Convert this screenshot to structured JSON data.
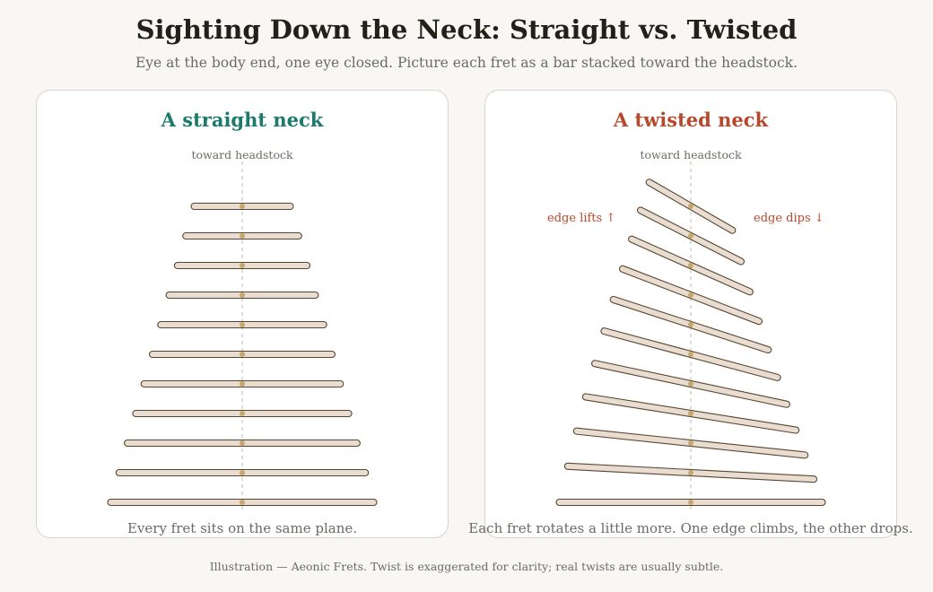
{
  "header": {
    "title": "Sighting Down the Neck: Straight vs. Twisted",
    "subtitle": "Eye at the body end, one eye closed. Picture each fret as a bar stacked toward the headstock."
  },
  "straight_panel": {
    "title": "A straight neck",
    "axis_label": "toward headstock",
    "caption": "Every fret sits on the same plane.",
    "fret_count": 11,
    "fret_rotation_deg": [
      0,
      0,
      0,
      0,
      0,
      0,
      0,
      0,
      0,
      0,
      0
    ]
  },
  "twisted_panel": {
    "title": "A twisted neck",
    "axis_label": "toward headstock",
    "edge_lift_label": "edge lifts ↑",
    "edge_dip_label": "edge dips ↓",
    "caption": "Each fret rotates a little more. One edge climbs, the other drops.",
    "fret_count": 11,
    "fret_rotation_deg": [
      0,
      3,
      6,
      9,
      12,
      15,
      18,
      21,
      24,
      27,
      30
    ]
  },
  "footer": {
    "text": "Illustration — Aeonic Frets. Twist is exaggerated for clarity; real twists are usually subtle."
  },
  "colors": {
    "fret_fill": "#e8ddd0",
    "fret_stroke": "#5a4630",
    "center_dot": "#c6a86a",
    "center_line": "#cfcac0",
    "straight_accent": "#1b7a6b",
    "twisted_accent": "#b8482b"
  }
}
